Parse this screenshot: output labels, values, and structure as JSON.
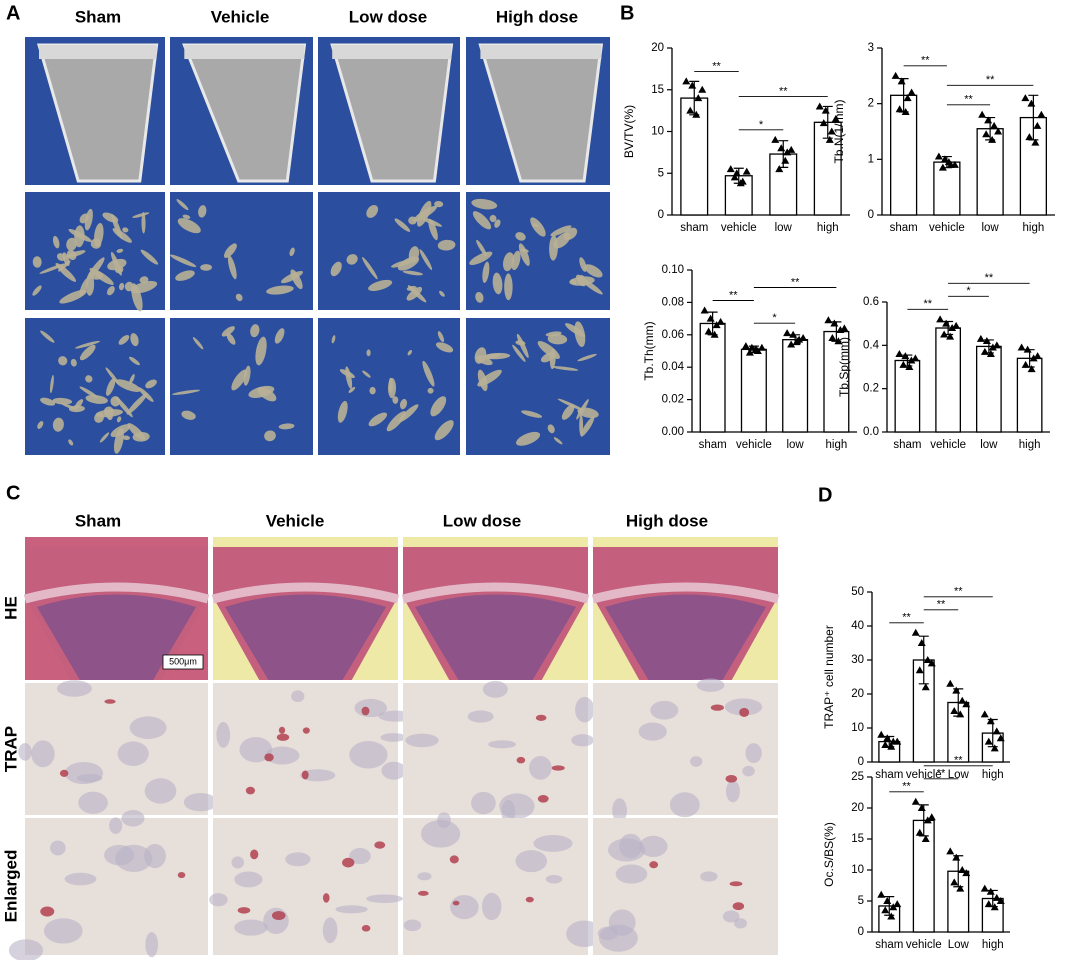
{
  "panels": {
    "A": {
      "label": "A",
      "columns": [
        "Sham",
        "Vehicle",
        "Low dose",
        "High dose"
      ]
    },
    "B": {
      "label": "B"
    },
    "C": {
      "label": "C",
      "columns": [
        "Sham",
        "Vehicle",
        "Low dose",
        "High dose"
      ],
      "rows": [
        "HE",
        "TRAP",
        "Enlarged"
      ],
      "scale_bar": "500μm"
    },
    "D": {
      "label": "D"
    }
  },
  "chart_data": [
    {
      "type": "bar",
      "y_label": "BV/TV(%)",
      "categories": [
        "sham",
        "vehicle",
        "low",
        "high"
      ],
      "values": [
        14,
        4.7,
        7.3,
        11.1
      ],
      "errors": [
        2.0,
        0.9,
        1.6,
        1.9
      ],
      "points": [
        [
          16,
          15.5,
          14,
          12.5,
          12,
          15
        ],
        [
          5.5,
          5,
          4,
          4.5,
          3.8,
          5.2
        ],
        [
          9,
          8,
          7.5,
          5.5,
          6.5,
          7.8
        ],
        [
          13,
          12.5,
          10,
          11,
          9,
          11.5
        ]
      ],
      "ylim": [
        0,
        20
      ],
      "yticks": [
        0,
        5,
        10,
        15,
        20
      ],
      "comparisons": [
        {
          "pair": [
            0,
            1
          ],
          "label": "**"
        },
        {
          "pair": [
            1,
            2
          ],
          "label": "*"
        },
        {
          "pair": [
            1,
            3
          ],
          "label": "**"
        }
      ]
    },
    {
      "type": "bar",
      "y_label": "Tb.N(1/mm)",
      "categories": [
        "sham",
        "vehicle",
        "low",
        "high"
      ],
      "values": [
        2.15,
        0.95,
        1.55,
        1.75
      ],
      "errors": [
        0.3,
        0.1,
        0.2,
        0.4
      ],
      "points": [
        [
          2.5,
          2.4,
          2.1,
          1.9,
          1.85,
          2.2
        ],
        [
          1.05,
          1.0,
          0.9,
          0.85,
          0.95,
          0.9
        ],
        [
          1.8,
          1.7,
          1.6,
          1.45,
          1.35,
          1.5
        ],
        [
          2.1,
          2.0,
          1.6,
          1.4,
          1.3,
          1.8
        ]
      ],
      "ylim": [
        0,
        3
      ],
      "yticks": [
        0,
        1,
        2,
        3
      ],
      "comparisons": [
        {
          "pair": [
            0,
            1
          ],
          "label": "**"
        },
        {
          "pair": [
            1,
            2
          ],
          "label": "**"
        },
        {
          "pair": [
            1,
            3
          ],
          "label": "**"
        }
      ]
    },
    {
      "type": "bar",
      "y_label": "Tb.Th(mm)",
      "categories": [
        "sham",
        "vehicle",
        "low",
        "high"
      ],
      "values": [
        0.067,
        0.051,
        0.057,
        0.062
      ],
      "errors": [
        0.007,
        0.002,
        0.003,
        0.006
      ],
      "points": [
        [
          0.075,
          0.07,
          0.066,
          0.062,
          0.06,
          0.068
        ],
        [
          0.053,
          0.052,
          0.05,
          0.049,
          0.051,
          0.052
        ],
        [
          0.061,
          0.06,
          0.057,
          0.054,
          0.056,
          0.058
        ],
        [
          0.069,
          0.067,
          0.063,
          0.058,
          0.056,
          0.064
        ]
      ],
      "ylim": [
        0,
        0.1
      ],
      "yticks": [
        {
          "value": 0,
          "label": "0.00"
        },
        {
          "value": 0.02,
          "label": "0.02"
        },
        {
          "value": 0.04,
          "label": "0.04"
        },
        {
          "value": 0.06,
          "label": "0.06"
        },
        {
          "value": 0.08,
          "label": "0.08"
        },
        {
          "value": 0.1,
          "label": "0.10"
        }
      ],
      "comparisons": [
        {
          "pair": [
            0,
            1
          ],
          "label": "**"
        },
        {
          "pair": [
            1,
            2
          ],
          "label": "*"
        },
        {
          "pair": [
            1,
            3
          ],
          "label": "**"
        }
      ]
    },
    {
      "type": "bar",
      "y_label": "Tb.Sp(mm)",
      "categories": [
        "sham",
        "vehicle",
        "low",
        "high"
      ],
      "values": [
        0.33,
        0.48,
        0.395,
        0.34
      ],
      "errors": [
        0.025,
        0.03,
        0.03,
        0.04
      ],
      "points": [
        [
          0.36,
          0.35,
          0.33,
          0.31,
          0.3,
          0.34
        ],
        [
          0.52,
          0.5,
          0.48,
          0.45,
          0.44,
          0.49
        ],
        [
          0.43,
          0.42,
          0.39,
          0.37,
          0.36,
          0.4
        ],
        [
          0.39,
          0.38,
          0.34,
          0.31,
          0.29,
          0.35
        ]
      ],
      "ylim": [
        0,
        0.6
      ],
      "yticks": [
        {
          "value": 0,
          "label": "0.0"
        },
        0.2,
        0.4,
        0.6
      ],
      "comparisons": [
        {
          "pair": [
            0,
            1
          ],
          "label": "**"
        },
        {
          "pair": [
            1,
            2
          ],
          "label": "*"
        },
        {
          "pair": [
            1,
            3
          ],
          "label": "**"
        }
      ]
    },
    {
      "type": "bar",
      "y_label": "TRAP⁺ cell number",
      "categories": [
        "sham",
        "vehicle",
        "Low",
        "high"
      ],
      "values": [
        6,
        30,
        17.5,
        8.5
      ],
      "errors": [
        1.5,
        7,
        4,
        4
      ],
      "points": [
        [
          8,
          7,
          6,
          5,
          4.5,
          6
        ],
        [
          38,
          35,
          30,
          27,
          22,
          29
        ],
        [
          23,
          21,
          18,
          15,
          14,
          17
        ],
        [
          14,
          12,
          9,
          6,
          4,
          7
        ]
      ],
      "ylim": [
        0,
        50
      ],
      "yticks": [
        0,
        10,
        20,
        30,
        40,
        50
      ],
      "comparisons": [
        {
          "pair": [
            0,
            1
          ],
          "label": "**"
        },
        {
          "pair": [
            1,
            2
          ],
          "label": "**"
        },
        {
          "pair": [
            1,
            3
          ],
          "label": "**"
        }
      ]
    },
    {
      "type": "bar",
      "y_label": "Oc.S/BS(%)",
      "categories": [
        "sham",
        "vehicle",
        "Low",
        "high"
      ],
      "values": [
        4.2,
        18,
        9.8,
        5.4
      ],
      "errors": [
        1.5,
        2.5,
        2.5,
        1.3
      ],
      "points": [
        [
          6,
          5,
          4,
          3.5,
          2.5,
          4.5
        ],
        [
          21,
          20,
          18,
          16,
          15,
          18.5
        ],
        [
          13,
          12,
          10,
          8,
          7,
          9.5
        ],
        [
          7,
          6.5,
          5.5,
          4.5,
          4,
          5
        ]
      ],
      "ylim": [
        0,
        25
      ],
      "yticks": [
        0,
        5,
        10,
        15,
        20,
        25
      ],
      "comparisons": [
        {
          "pair": [
            0,
            1
          ],
          "label": "**"
        },
        {
          "pair": [
            1,
            2
          ],
          "label": "**"
        },
        {
          "pair": [
            1,
            3
          ],
          "label": "**"
        }
      ]
    }
  ]
}
